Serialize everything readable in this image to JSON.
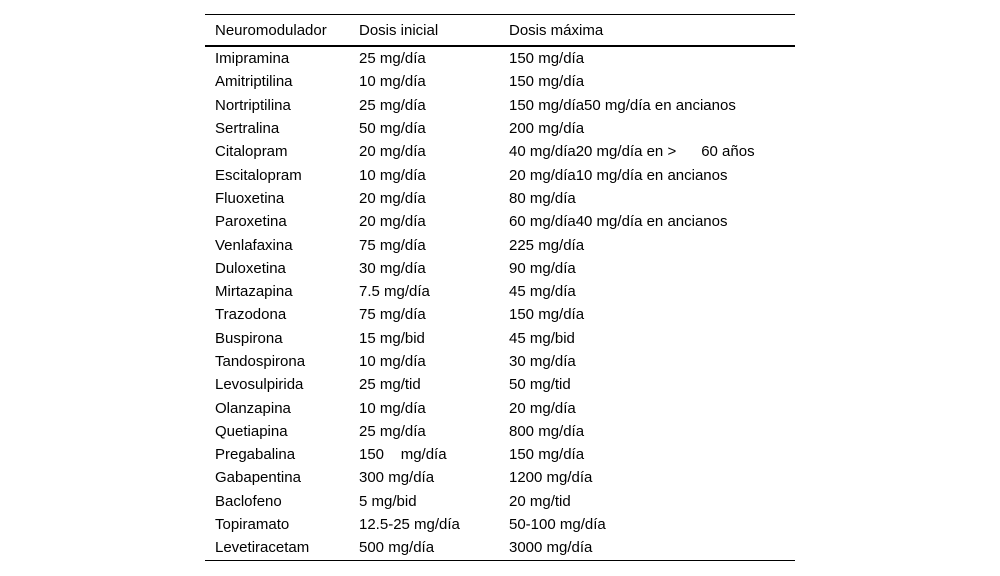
{
  "table": {
    "columns": [
      "Neuromodulador",
      "Dosis inicial",
      "Dosis máxima"
    ],
    "rows": [
      [
        "Imipramina",
        "25 mg/día",
        "150 mg/día"
      ],
      [
        "Amitriptilina",
        "10 mg/día",
        "150 mg/día"
      ],
      [
        "Nortriptilina",
        "25 mg/día",
        "150 mg/día50 mg/día en ancianos"
      ],
      [
        "Sertralina",
        "50 mg/día",
        "200 mg/día"
      ],
      [
        "Citalopram",
        "20 mg/día",
        "40 mg/día20 mg/día en >      60 años"
      ],
      [
        "Escitalopram",
        "10 mg/día",
        "20 mg/día10 mg/día en ancianos"
      ],
      [
        "Fluoxetina",
        "20 mg/día",
        "80 mg/día"
      ],
      [
        "Paroxetina",
        "20 mg/día",
        "60 mg/día40 mg/día en ancianos"
      ],
      [
        "Venlafaxina",
        "75 mg/día",
        "225 mg/día"
      ],
      [
        "Duloxetina",
        "30 mg/día",
        "90 mg/día"
      ],
      [
        "Mirtazapina",
        "7.5 mg/día",
        "45 mg/día"
      ],
      [
        "Trazodona",
        "75 mg/día",
        "150 mg/día"
      ],
      [
        "Buspirona",
        "15 mg/bid",
        "45 mg/bid"
      ],
      [
        "Tandospirona",
        "10 mg/día",
        "30 mg/día"
      ],
      [
        "Levosulpirida",
        "25 mg/tid",
        "50 mg/tid"
      ],
      [
        "Olanzapina",
        "10 mg/día",
        "20 mg/día"
      ],
      [
        "Quetiapina",
        "25 mg/día",
        "800 mg/día"
      ],
      [
        "Pregabalina",
        "150    mg/día",
        "150 mg/día"
      ],
      [
        "Gabapentina",
        "300 mg/día",
        "1200 mg/día"
      ],
      [
        "Baclofeno",
        "5 mg/bid",
        "20 mg/tid"
      ],
      [
        "Topiramato",
        "12.5-25 mg/día",
        "50-100 mg/día"
      ],
      [
        "Levetiracetam",
        "500 mg/día",
        "3000 mg/día"
      ]
    ]
  },
  "colors": {
    "text": "#000000",
    "rule": "#000000",
    "background": "#ffffff"
  }
}
